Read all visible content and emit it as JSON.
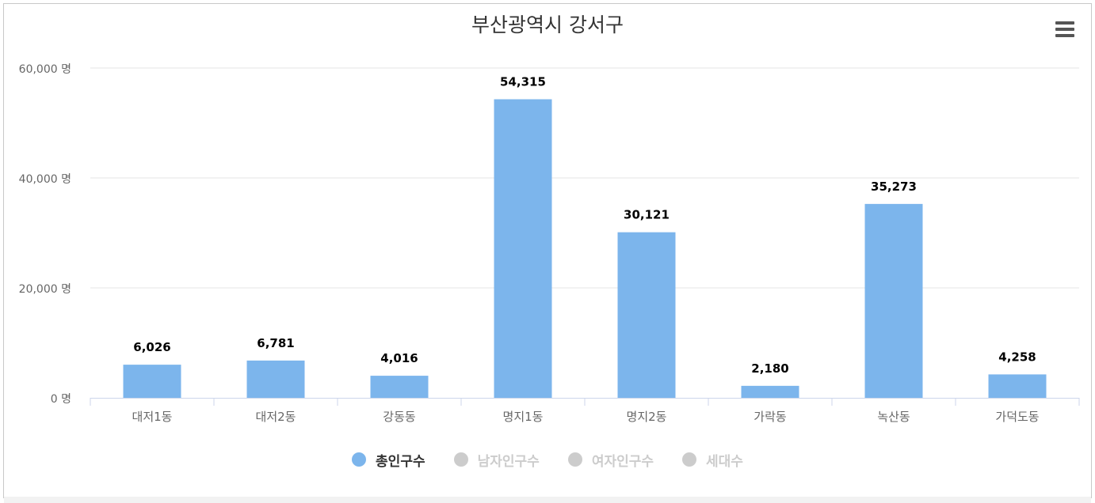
{
  "chart_data": {
    "type": "bar",
    "title": "부산광역시 강서구",
    "categories": [
      "대저1동",
      "대저2동",
      "강동동",
      "명지1동",
      "명지2동",
      "가락동",
      "녹산동",
      "가덕도동"
    ],
    "series": [
      {
        "name": "총인구수",
        "values": [
          6026,
          6781,
          4016,
          54315,
          30121,
          2180,
          35273,
          4258
        ],
        "color": "#7cb5ec",
        "visible": true
      }
    ],
    "data_labels": [
      "6,026",
      "6,781",
      "4,016",
      "54,315",
      "30,121",
      "2,180",
      "35,273",
      "4,258"
    ],
    "ylim": [
      0,
      60000
    ],
    "y_ticks": [
      0,
      20000,
      40000,
      60000
    ],
    "y_tick_labels": [
      "0 명",
      "20,000 명",
      "40,000 명",
      "60,000 명"
    ],
    "grid": true,
    "legend_position": "bottom-center"
  },
  "legend": [
    {
      "label": "총인구수",
      "color": "#7cb5ec",
      "active": true
    },
    {
      "label": "남자인구수",
      "color": "#cccccc",
      "active": false
    },
    {
      "label": "여자인구수",
      "color": "#cccccc",
      "active": false
    },
    {
      "label": "세대수",
      "color": "#cccccc",
      "active": false
    }
  ],
  "menu_icon": "hamburger-menu-icon",
  "colors": {
    "axis": "#ccd6eb",
    "grid": "#e6e6e6",
    "text": "#666666",
    "label": "#000000",
    "inactive_text": "#cccccc"
  }
}
